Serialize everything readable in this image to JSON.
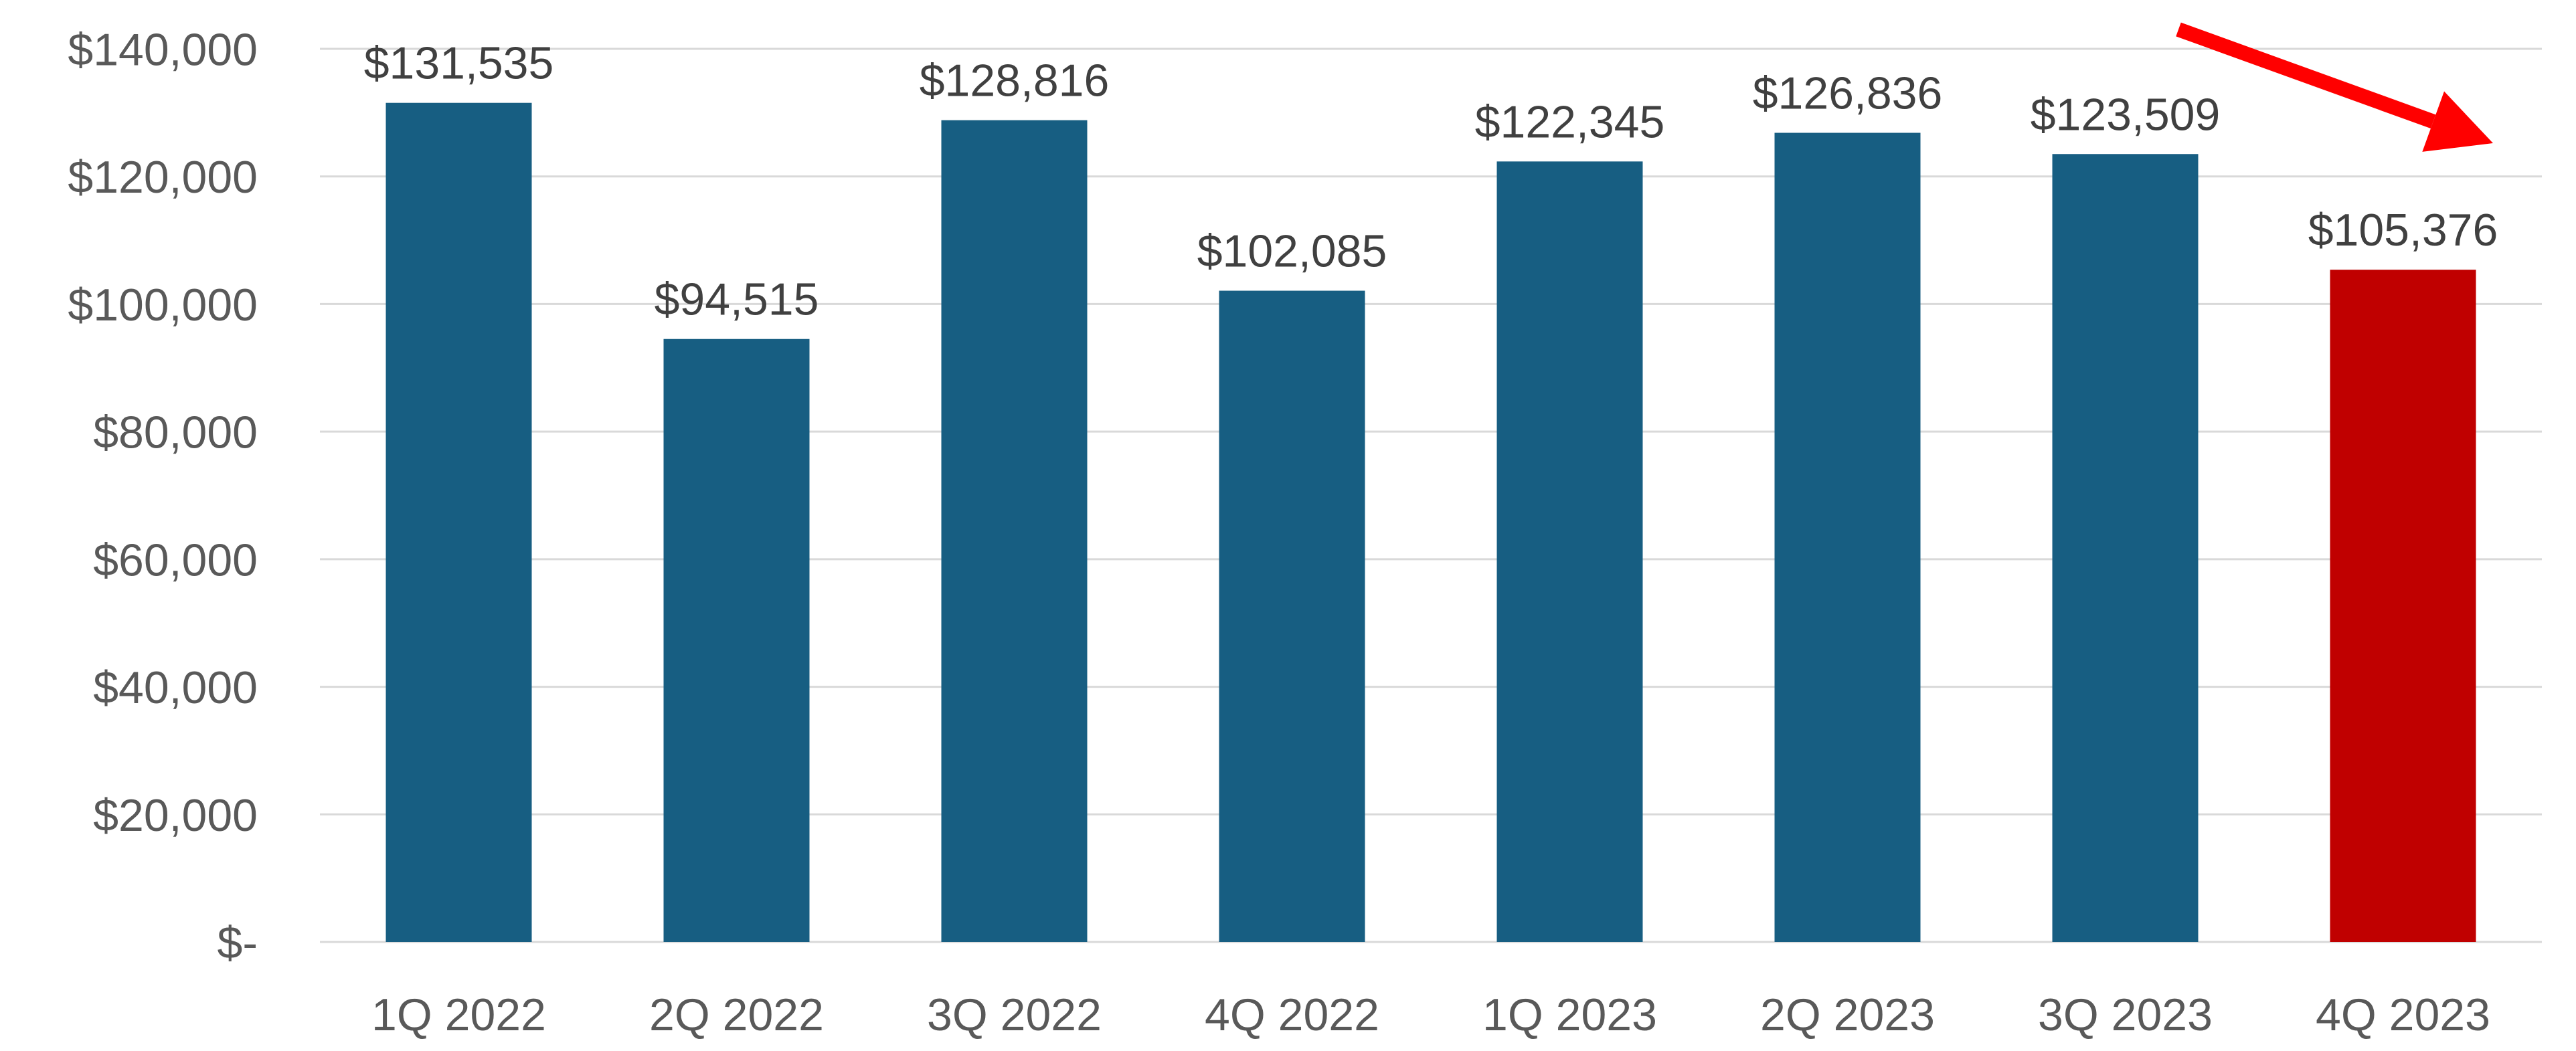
{
  "chart_data": {
    "type": "bar",
    "categories": [
      "1Q 2022",
      "2Q 2022",
      "3Q 2022",
      "4Q 2022",
      "1Q 2023",
      "2Q 2023",
      "3Q 2023",
      "4Q 2023"
    ],
    "values": [
      131535,
      94515,
      128816,
      102085,
      122345,
      126836,
      123509,
      105376
    ],
    "data_labels": [
      "$131,535",
      "$94,515",
      "$128,816",
      "$102,085",
      "$122,345",
      "$126,836",
      "$123,509",
      "$105,376"
    ],
    "title": "",
    "xlabel": "",
    "ylabel": "",
    "ylim": [
      0,
      140000
    ],
    "y_ticks": [
      0,
      20000,
      40000,
      60000,
      80000,
      100000,
      120000,
      140000
    ],
    "y_tick_labels": [
      "$-",
      "$20,000",
      "$40,000",
      "$60,000",
      "$80,000",
      "$100,000",
      "$120,000",
      "$140,000"
    ],
    "grid": true,
    "legend": "none",
    "colors": {
      "bar": "#175E82",
      "highlight_bar": "#C00000",
      "trend_arrow": "#FF0000",
      "gridline": "#D9D9D9",
      "text": "#595959"
    },
    "highlight_category": "4Q 2023",
    "annotation": "downward-trend-arrow"
  }
}
